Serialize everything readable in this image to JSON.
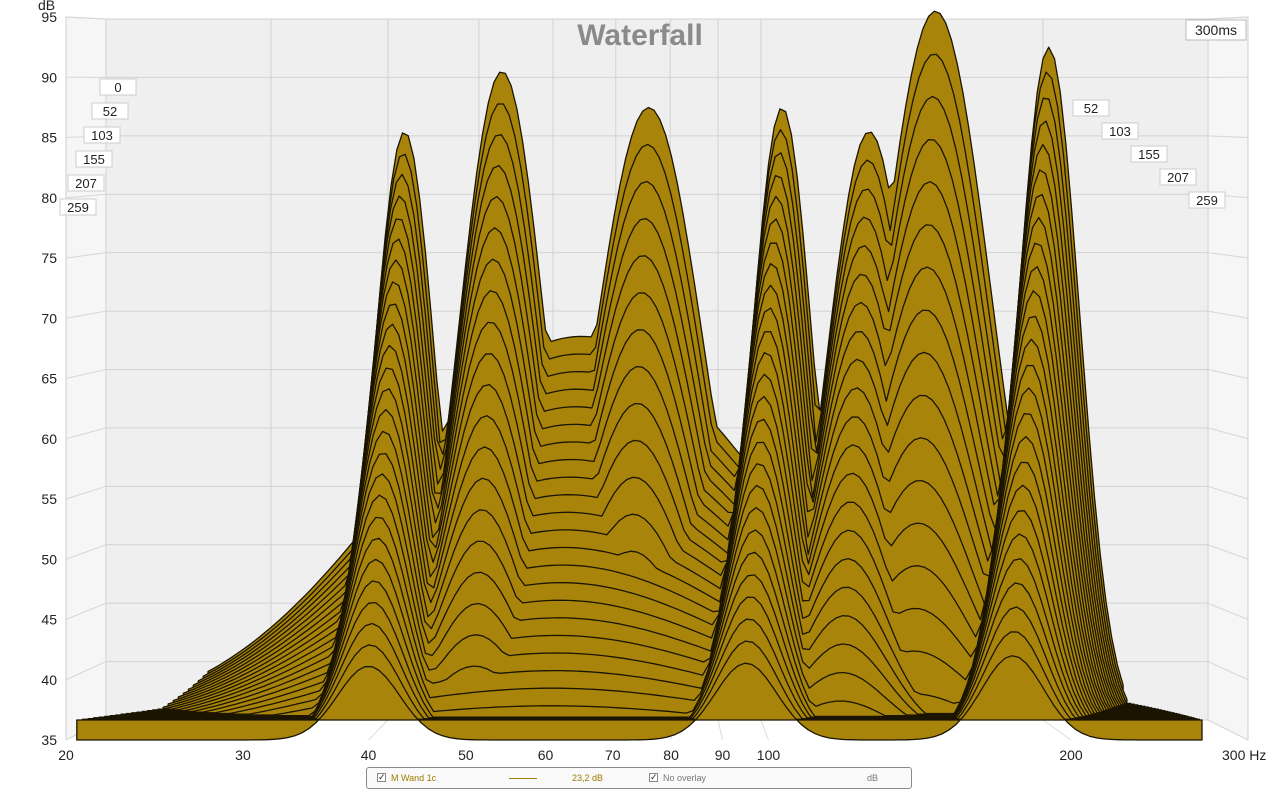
{
  "chart_data": {
    "type": "waterfall",
    "title": "Waterfall",
    "ylabel": "dB",
    "xlabel_unit": "Hz",
    "x_scale": "log",
    "xlim": [
      20,
      300
    ],
    "ylim": [
      35,
      95
    ],
    "y_ticks": [
      "35",
      "40",
      "45",
      "50",
      "55",
      "60",
      "65",
      "70",
      "75",
      "80",
      "85",
      "90",
      "95"
    ],
    "x_ticks": [
      {
        "label": "20",
        "value": 20
      },
      {
        "label": "30",
        "value": 30
      },
      {
        "label": "40",
        "value": 40
      },
      {
        "label": "50",
        "value": 50
      },
      {
        "label": "60",
        "value": 60
      },
      {
        "label": "70",
        "value": 70
      },
      {
        "label": "80",
        "value": 80
      },
      {
        "label": "90",
        "value": 90
      },
      {
        "label": "100",
        "value": 100
      },
      {
        "label": "200",
        "value": 200
      },
      {
        "label": "300 Hz",
        "value": 300
      }
    ],
    "time_axis_label": "300ms",
    "time_ticks_left": [
      "0",
      "52",
      "103",
      "155",
      "207",
      "259"
    ],
    "time_ticks_right": [
      "52",
      "103",
      "155",
      "207",
      "259"
    ],
    "slice_count": 26,
    "fill_color": "#a8850a",
    "line_color": "#1a1400",
    "front_slice_peaks": [
      {
        "freq_hz": 40,
        "db": 84
      },
      {
        "freq_hz": 50,
        "db": 89
      },
      {
        "freq_hz": 70,
        "db": 86
      },
      {
        "freq_hz": 95,
        "db": 86
      },
      {
        "freq_hz": 116,
        "db": 84
      },
      {
        "freq_hz": 135,
        "db": 94
      },
      {
        "freq_hz": 175,
        "db": 91
      }
    ]
  },
  "legend": {
    "measurement_name": "M Wand 1c",
    "measurement_value": "23,2 dB",
    "overlay_label": "No overlay",
    "overlay_unit": "dB",
    "series_color": "#a07f00"
  }
}
